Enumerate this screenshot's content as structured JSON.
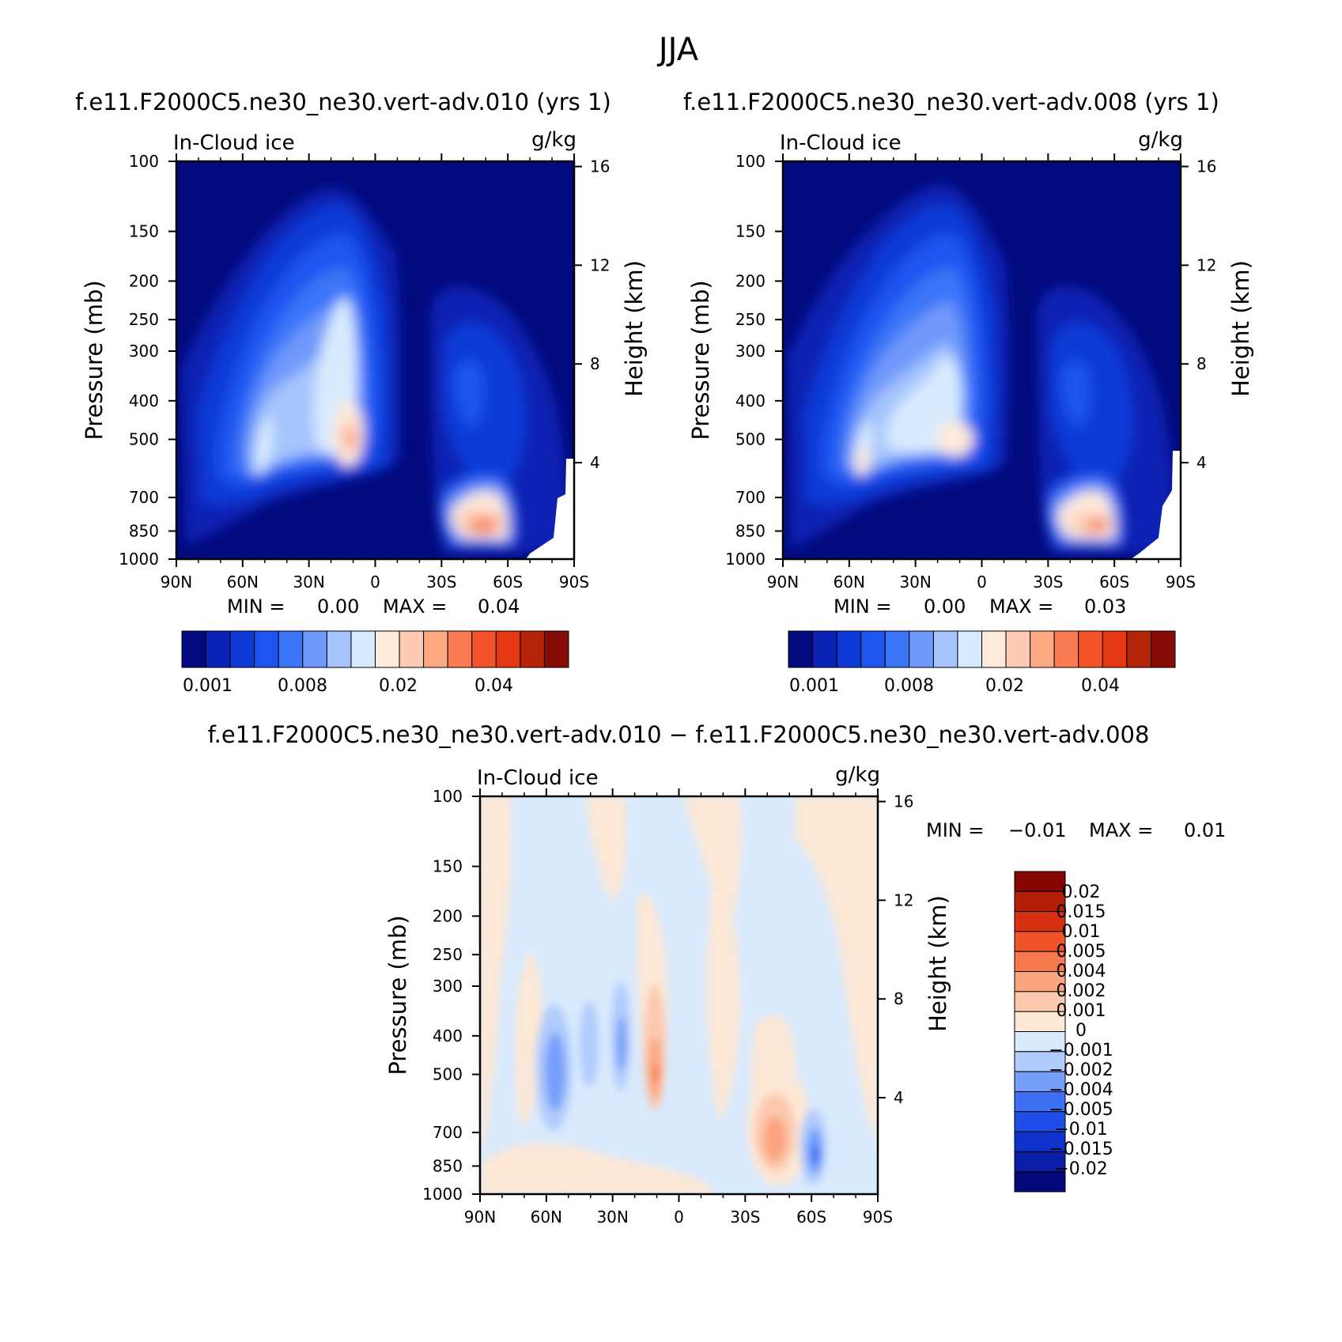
{
  "figure": {
    "title": "JJA"
  },
  "colors": {
    "abs_palette": [
      "#030a7d",
      "#0a23b4",
      "#0d3ad7",
      "#1e55f0",
      "#3a75f8",
      "#6f99fb",
      "#a5c4fd",
      "#d8ebfe",
      "#feeadb",
      "#fdcbb3",
      "#fba883",
      "#f97c54",
      "#f5542b",
      "#e33811",
      "#b52309",
      "#860b05"
    ],
    "diff_palette": [
      "#04097a",
      "#0a1ea8",
      "#0d33cc",
      "#1f4ee9",
      "#3d70f5",
      "#779ef9",
      "#b0ccfd",
      "#d9eafd",
      "#fde8d6",
      "#fcc9ae",
      "#fba47e",
      "#f7794e",
      "#ef5328",
      "#d63112",
      "#b21e08",
      "#850503"
    ]
  },
  "axes": {
    "lat_ticks": [
      "90N",
      "60N",
      "30N",
      "0",
      "30S",
      "60S",
      "90S"
    ],
    "pressure_ticks": [
      "100",
      "150",
      "200",
      "250",
      "300",
      "400",
      "500",
      "700",
      "850",
      "1000"
    ],
    "height_ticks": [
      "16",
      "12",
      "8",
      "4"
    ],
    "ylabel_left": "Pressure (mb)",
    "ylabel_right": "Height (km)"
  },
  "chart_data": [
    {
      "type": "heatmap",
      "title": "f.e11.F2000C5.ne30_ne30.vert-adv.010 (yrs 1)",
      "left_label": "In-Cloud ice",
      "right_label": "g/kg",
      "stats": {
        "min_label": "MIN =",
        "min": "0.00",
        "max_label": "MAX =",
        "max": "0.04"
      },
      "colorbar_labels": [
        "0.001",
        "0.008",
        "0.02",
        "0.04"
      ],
      "features": [
        {
          "lat": 50,
          "p": 560,
          "value": 0.02
        },
        {
          "lat": 10,
          "p": 500,
          "value": 0.03
        },
        {
          "lat": -55,
          "p": 830,
          "value": 0.04
        }
      ]
    },
    {
      "type": "heatmap",
      "title": "f.e11.F2000C5.ne30_ne30.vert-adv.008 (yrs 1)",
      "left_label": "In-Cloud ice",
      "right_label": "g/kg",
      "stats": {
        "min_label": "MIN =",
        "min": "0.00",
        "max_label": "MAX =",
        "max": "0.03"
      },
      "colorbar_labels": [
        "0.001",
        "0.008",
        "0.02",
        "0.04"
      ],
      "features": [
        {
          "lat": 50,
          "p": 560,
          "value": 0.02
        },
        {
          "lat": 10,
          "p": 500,
          "value": 0.02
        },
        {
          "lat": -55,
          "p": 830,
          "value": 0.03
        }
      ]
    },
    {
      "type": "heatmap",
      "title": "f.e11.F2000C5.ne30_ne30.vert-adv.010 − f.e11.F2000C5.ne30_ne30.vert-adv.008",
      "left_label": "In-Cloud ice",
      "right_label": "g/kg",
      "stats": {
        "min_label": "MIN =",
        "min": "−0.01",
        "max_label": "MAX =",
        "max": "0.01"
      },
      "colorbar_labels": [
        "0.02",
        "0.015",
        "0.01",
        "0.005",
        "0.004",
        "0.002",
        "0.001",
        "0",
        "−0.001",
        "−0.002",
        "−0.004",
        "−0.005",
        "−0.01",
        "−0.015",
        "−0.02"
      ],
      "features": [
        {
          "lat": 10,
          "p": 480,
          "value": 0.005
        },
        {
          "lat": 55,
          "p": 470,
          "value": -0.004
        },
        {
          "lat": -45,
          "p": 730,
          "value": 0.004
        },
        {
          "lat": -60,
          "p": 750,
          "value": -0.005
        }
      ]
    }
  ]
}
